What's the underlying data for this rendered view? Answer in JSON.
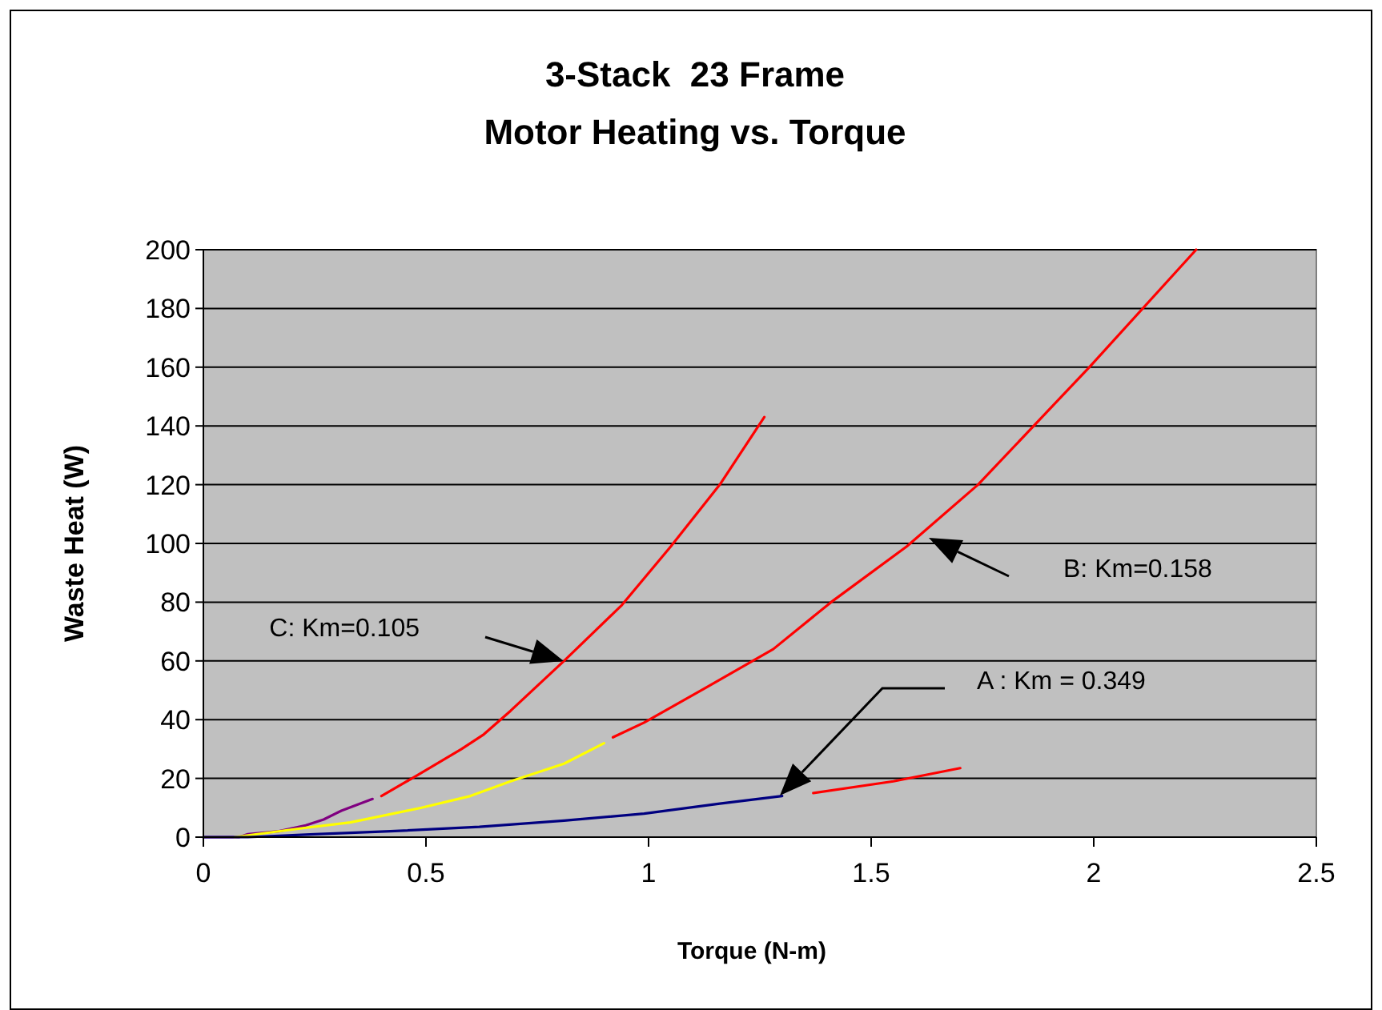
{
  "chart_data": {
    "type": "line",
    "title": "3-Stack  23 Frame",
    "subtitle": "Motor Heating vs. Torque",
    "xlabel": "Torque (N-m)",
    "ylabel": "Waste Heat (W)",
    "xlim": [
      0,
      2.5
    ],
    "xticks": [
      0,
      0.5,
      1,
      1.5,
      2,
      2.5
    ],
    "ylim": [
      0,
      200
    ],
    "yticks": [
      0,
      20,
      40,
      60,
      80,
      100,
      120,
      140,
      160,
      180,
      200
    ],
    "grid": "y",
    "marker": "none",
    "line_style": "solid",
    "series": [
      {
        "color": "#800080",
        "x": [
          0,
          0.08,
          0.1,
          0.17,
          0.23,
          0.27,
          0.31,
          0.38
        ],
        "values": [
          0,
          0,
          1,
          2,
          4,
          6,
          9,
          13
        ]
      },
      {
        "color": "#ff0000",
        "x": [
          0.4,
          0.48,
          0.58,
          0.63,
          0.69,
          0.81,
          0.94,
          1.05,
          1.16,
          1.26
        ],
        "values": [
          14,
          21,
          30,
          35,
          43,
          60,
          79,
          99,
          120,
          143
        ]
      },
      {
        "color": "#ffff00",
        "x": [
          0.07,
          0.22,
          0.33,
          0.49,
          0.6,
          0.69,
          0.81,
          0.9
        ],
        "values": [
          0,
          3,
          5,
          10,
          14,
          19,
          25,
          32
        ]
      },
      {
        "color": "#ff0000",
        "x": [
          0.92,
          0.99,
          1.13,
          1.28,
          1.41,
          1.58,
          1.74,
          1.99,
          2.23
        ],
        "values": [
          34,
          39,
          51,
          64,
          80,
          99,
          120,
          160,
          200
        ]
      },
      {
        "color": "#000080",
        "x": [
          0,
          0.1,
          0.25,
          0.42,
          0.62,
          0.81,
          0.99,
          1.16,
          1.3
        ],
        "values": [
          0,
          0,
          1,
          2,
          3.5,
          5.6,
          8,
          11.4,
          14
        ]
      },
      {
        "color": "#ff0000",
        "x": [
          1.37,
          1.55,
          1.7
        ],
        "values": [
          15,
          19,
          23.5
        ]
      }
    ],
    "annotations": [
      "C: Km=0.105",
      "B: Km=0.158",
      "A : Km = 0.349"
    ]
  }
}
